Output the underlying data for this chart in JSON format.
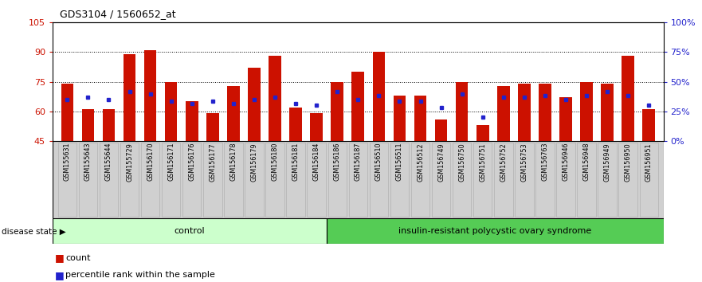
{
  "title": "GDS3104 / 1560652_at",
  "samples": [
    "GSM155631",
    "GSM155643",
    "GSM155644",
    "GSM155729",
    "GSM156170",
    "GSM156171",
    "GSM156176",
    "GSM156177",
    "GSM156178",
    "GSM156179",
    "GSM156180",
    "GSM156181",
    "GSM156184",
    "GSM156186",
    "GSM156187",
    "GSM156510",
    "GSM156511",
    "GSM156512",
    "GSM156749",
    "GSM156750",
    "GSM156751",
    "GSM156752",
    "GSM156753",
    "GSM156763",
    "GSM156946",
    "GSM156948",
    "GSM156949",
    "GSM156950",
    "GSM156951"
  ],
  "red_values": [
    74,
    61,
    61,
    89,
    91,
    75,
    65,
    59,
    73,
    82,
    88,
    62,
    59,
    75,
    80,
    90,
    68,
    68,
    56,
    75,
    53,
    73,
    74,
    74,
    67,
    75,
    74,
    88,
    61
  ],
  "blue_values": [
    66,
    67,
    66,
    70,
    69,
    65,
    64,
    65,
    64,
    66,
    67,
    64,
    63,
    70,
    66,
    68,
    65,
    65,
    62,
    69,
    57,
    67,
    67,
    68,
    66,
    68,
    70,
    68,
    63
  ],
  "control_count": 13,
  "disease_count": 16,
  "control_label": "control",
  "disease_label": "insulin-resistant polycystic ovary syndrome",
  "disease_state_label": "disease state",
  "legend_red": "count",
  "legend_blue": "percentile rank within the sample",
  "y_min": 45,
  "y_max": 105,
  "y_ticks_left": [
    45,
    60,
    75,
    90,
    105
  ],
  "y_ticks_right_labels": [
    "0%",
    "25%",
    "50%",
    "75%",
    "100%"
  ],
  "y_ticks_right_values": [
    45,
    60,
    75,
    90,
    105
  ],
  "bar_color": "#cc1100",
  "dot_color": "#2222cc",
  "control_bg": "#ccffcc",
  "disease_bg": "#55cc55",
  "plot_bg": "#ffffff",
  "axis_color_left": "#cc1100",
  "axis_color_right": "#2222cc",
  "gray_bg": "#d0d0d0"
}
